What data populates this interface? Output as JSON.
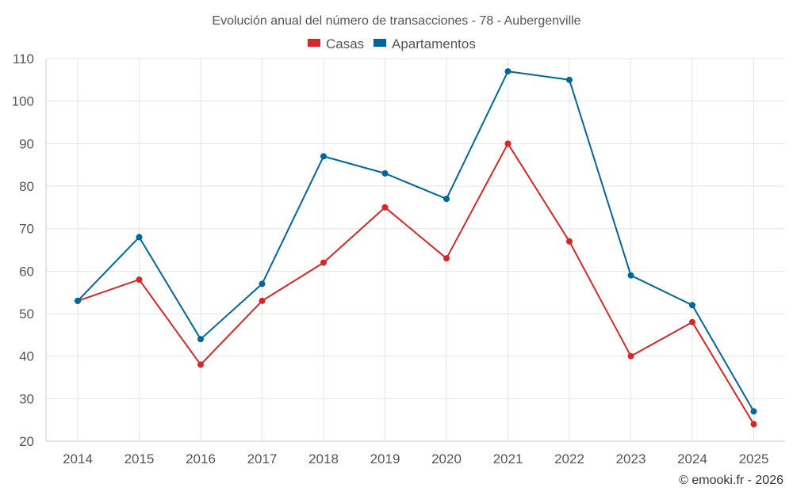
{
  "colors": {
    "casas": "#d62728",
    "apartamentos": "#00669c"
  },
  "credit": "© emooki.fr - 2026",
  "chart_data": {
    "type": "line",
    "title": "Evolución anual del número de transacciones - 78 - Aubergenville",
    "xlabel": "",
    "ylabel": "",
    "ylim": [
      20,
      110
    ],
    "yticks": [
      20,
      30,
      40,
      50,
      60,
      70,
      80,
      90,
      100,
      110
    ],
    "categories": [
      "2014",
      "2015",
      "2016",
      "2017",
      "2018",
      "2019",
      "2020",
      "2021",
      "2022",
      "2023",
      "2024",
      "2025"
    ],
    "grid": true,
    "legend_position": "top-center",
    "series": [
      {
        "name": "Casas",
        "color": "#d62728",
        "values": [
          53,
          58,
          38,
          53,
          62,
          75,
          63,
          90,
          67,
          40,
          48,
          24
        ]
      },
      {
        "name": "Apartamentos",
        "color": "#00669c",
        "values": [
          53,
          68,
          44,
          57,
          87,
          83,
          77,
          107,
          105,
          59,
          52,
          27
        ]
      }
    ]
  }
}
